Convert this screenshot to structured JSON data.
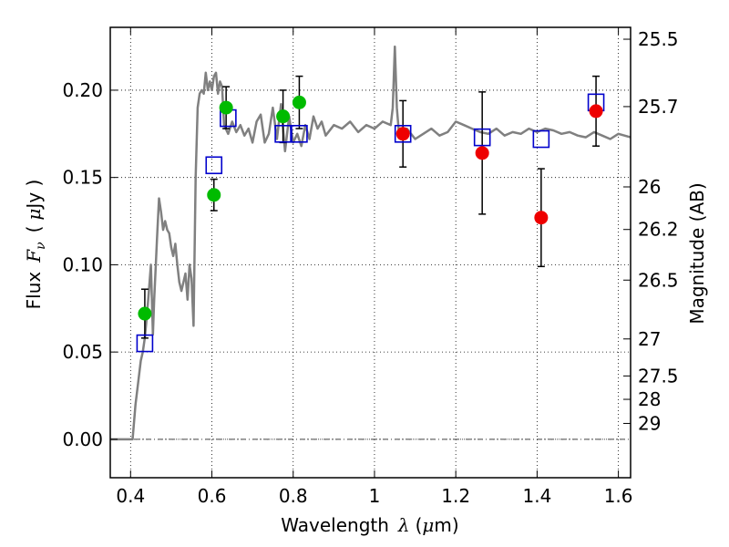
{
  "chart_data": {
    "type": "scatter",
    "xlabel": {
      "prefix": "Wavelength",
      "symbol": "λ",
      "unit_open": "(",
      "unit_mu": "μ",
      "unit_rest": "m)"
    },
    "ylabel": {
      "prefix": "Flux",
      "symbol": "F",
      "sub": "ν",
      "unit_open": "(",
      "unit_mu": "μ",
      "unit_rest": "Jy )"
    },
    "y2label": "Magnitude (AB)",
    "xlim": [
      0.35,
      1.63
    ],
    "ylim": [
      -0.022,
      0.236
    ],
    "x_ticks": [
      0.4,
      0.6,
      0.8,
      1.0,
      1.2,
      1.4,
      1.6
    ],
    "x_tick_labels": [
      "0.4",
      "0.6",
      "0.8",
      "1",
      "1.2",
      "1.4",
      "1.6"
    ],
    "y_ticks": [
      0.0,
      0.05,
      0.1,
      0.15,
      0.2
    ],
    "y_tick_labels": [
      "0.00",
      "0.05",
      "0.10",
      "0.15",
      "0.20"
    ],
    "y2_ticks": [
      {
        "label": "25.5",
        "flux": 0.2292
      },
      {
        "label": "25.7",
        "flux": 0.1906
      },
      {
        "label": "26",
        "flux": 0.1446
      },
      {
        "label": "26.2",
        "flux": 0.1202
      },
      {
        "label": "26.5",
        "flux": 0.0912
      },
      {
        "label": "27",
        "flux": 0.0575
      },
      {
        "label": "27.5",
        "flux": 0.0363
      },
      {
        "label": "28",
        "flux": 0.0229
      },
      {
        "label": "29",
        "flux": 0.0091
      }
    ],
    "grid": true,
    "series": [
      {
        "kind": "line",
        "color": "#808080",
        "x": [
          0.35,
          0.395,
          0.405,
          0.412,
          0.42,
          0.425,
          0.43,
          0.435,
          0.44,
          0.445,
          0.45,
          0.455,
          0.458,
          0.46,
          0.465,
          0.47,
          0.475,
          0.48,
          0.485,
          0.49,
          0.495,
          0.5,
          0.505,
          0.51,
          0.515,
          0.52,
          0.525,
          0.53,
          0.535,
          0.54,
          0.545,
          0.55,
          0.555,
          0.56,
          0.565,
          0.57,
          0.575,
          0.58,
          0.585,
          0.59,
          0.595,
          0.6,
          0.605,
          0.61,
          0.615,
          0.62,
          0.625,
          0.63,
          0.64,
          0.65,
          0.66,
          0.67,
          0.68,
          0.69,
          0.7,
          0.71,
          0.72,
          0.73,
          0.74,
          0.75,
          0.76,
          0.77,
          0.78,
          0.79,
          0.8,
          0.81,
          0.82,
          0.83,
          0.84,
          0.85,
          0.86,
          0.87,
          0.88,
          0.9,
          0.92,
          0.94,
          0.96,
          0.98,
          1.0,
          1.02,
          1.04,
          1.045,
          1.05,
          1.055,
          1.06,
          1.08,
          1.1,
          1.12,
          1.14,
          1.16,
          1.18,
          1.2,
          1.22,
          1.24,
          1.26,
          1.28,
          1.3,
          1.32,
          1.34,
          1.36,
          1.38,
          1.4,
          1.42,
          1.44,
          1.46,
          1.48,
          1.5,
          1.52,
          1.54,
          1.56,
          1.58,
          1.6,
          1.63
        ],
        "y": [
          0.0,
          0.0,
          0.0,
          0.02,
          0.035,
          0.045,
          0.05,
          0.058,
          0.07,
          0.085,
          0.1,
          0.06,
          0.08,
          0.09,
          0.115,
          0.138,
          0.13,
          0.12,
          0.125,
          0.12,
          0.118,
          0.11,
          0.105,
          0.112,
          0.1,
          0.09,
          0.085,
          0.09,
          0.095,
          0.08,
          0.1,
          0.092,
          0.065,
          0.15,
          0.19,
          0.198,
          0.2,
          0.198,
          0.21,
          0.2,
          0.205,
          0.2,
          0.208,
          0.21,
          0.198,
          0.205,
          0.202,
          0.18,
          0.175,
          0.182,
          0.176,
          0.18,
          0.174,
          0.178,
          0.17,
          0.182,
          0.186,
          0.17,
          0.175,
          0.19,
          0.172,
          0.192,
          0.165,
          0.185,
          0.17,
          0.175,
          0.168,
          0.18,
          0.172,
          0.185,
          0.178,
          0.182,
          0.174,
          0.18,
          0.178,
          0.182,
          0.176,
          0.18,
          0.178,
          0.182,
          0.18,
          0.19,
          0.225,
          0.19,
          0.176,
          0.178,
          0.172,
          0.175,
          0.178,
          0.174,
          0.176,
          0.182,
          0.18,
          0.178,
          0.176,
          0.175,
          0.178,
          0.174,
          0.176,
          0.175,
          0.178,
          0.176,
          0.178,
          0.177,
          0.175,
          0.176,
          0.174,
          0.173,
          0.176,
          0.174,
          0.172,
          0.175,
          0.173
        ]
      },
      {
        "kind": "points",
        "marker": "square",
        "color": "#0000cc",
        "x": [
          0.435,
          0.605,
          0.64,
          0.775,
          0.815,
          1.07,
          1.265,
          1.41,
          1.545
        ],
        "y": [
          0.055,
          0.157,
          0.184,
          0.175,
          0.175,
          0.175,
          0.173,
          0.172,
          0.193
        ]
      },
      {
        "kind": "points",
        "marker": "circle",
        "color": "#00bb00",
        "x": [
          0.435,
          0.605,
          0.635,
          0.775,
          0.815
        ],
        "y": [
          0.072,
          0.14,
          0.19,
          0.185,
          0.193
        ],
        "err": [
          0.014,
          0.009,
          0.012,
          0.015,
          0.015
        ]
      },
      {
        "kind": "points",
        "marker": "circle",
        "color": "#ee0000",
        "x": [
          1.07,
          1.265,
          1.41,
          1.545
        ],
        "y": [
          0.175,
          0.164,
          0.127,
          0.188
        ],
        "err": [
          0.019,
          0.035,
          0.028,
          0.02
        ]
      }
    ]
  }
}
